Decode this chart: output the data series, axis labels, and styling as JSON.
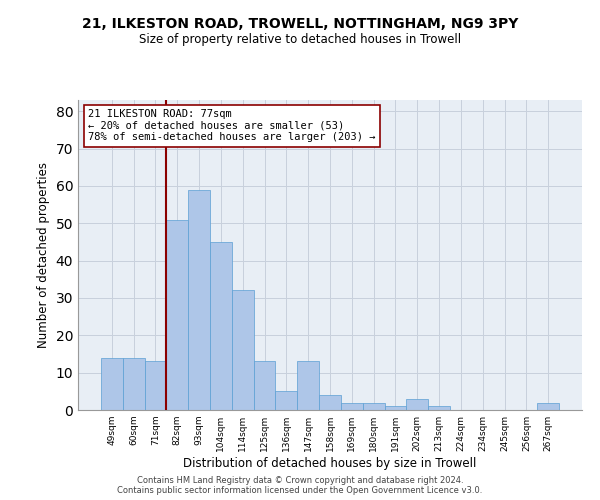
{
  "title_line1": "21, ILKESTON ROAD, TROWELL, NOTTINGHAM, NG9 3PY",
  "title_line2": "Size of property relative to detached houses in Trowell",
  "xlabel": "Distribution of detached houses by size in Trowell",
  "ylabel": "Number of detached properties",
  "categories": [
    "49sqm",
    "60sqm",
    "71sqm",
    "82sqm",
    "93sqm",
    "104sqm",
    "114sqm",
    "125sqm",
    "136sqm",
    "147sqm",
    "158sqm",
    "169sqm",
    "180sqm",
    "191sqm",
    "202sqm",
    "213sqm",
    "224sqm",
    "234sqm",
    "245sqm",
    "256sqm",
    "267sqm"
  ],
  "values": [
    14,
    14,
    13,
    51,
    59,
    45,
    32,
    13,
    5,
    13,
    4,
    2,
    2,
    1,
    3,
    1,
    0,
    0,
    0,
    0,
    2
  ],
  "bar_color": "#aec6e8",
  "bar_edge_color": "#5a9fd4",
  "grid_color": "#c8d0dc",
  "vline_color": "#8b0000",
  "annotation_text": "21 ILKESTON ROAD: 77sqm\n← 20% of detached houses are smaller (53)\n78% of semi-detached houses are larger (203) →",
  "annotation_box_color": "#ffffff",
  "annotation_box_edgecolor": "#8b0000",
  "ylim": [
    0,
    83
  ],
  "yticks": [
    0,
    10,
    20,
    30,
    40,
    50,
    60,
    70,
    80
  ],
  "footer_line1": "Contains HM Land Registry data © Crown copyright and database right 2024.",
  "footer_line2": "Contains public sector information licensed under the Open Government Licence v3.0.",
  "background_color": "#e8eef5"
}
